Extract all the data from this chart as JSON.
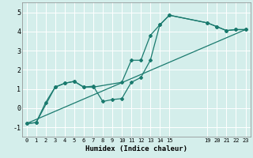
{
  "xlabel": "Humidex (Indice chaleur)",
  "ylabel": "",
  "bg_color": "#d4eeeb",
  "grid_color": "#ffffff",
  "line_color": "#1a7a6e",
  "xlim": [
    -0.5,
    23.5
  ],
  "ylim": [
    -1.5,
    5.5
  ],
  "xticks": [
    0,
    1,
    2,
    3,
    4,
    5,
    6,
    7,
    8,
    9,
    10,
    11,
    12,
    13,
    14,
    15,
    19,
    20,
    21,
    22,
    23
  ],
  "yticks": [
    -1,
    0,
    1,
    2,
    3,
    4,
    5
  ],
  "line1": {
    "x": [
      0,
      1,
      2,
      3,
      4,
      5,
      6,
      7,
      8,
      9,
      10,
      11,
      12,
      13,
      14,
      15,
      19,
      20,
      21,
      22,
      23
    ],
    "y": [
      -0.8,
      -0.75,
      0.3,
      1.1,
      1.3,
      1.4,
      1.1,
      1.15,
      0.35,
      0.45,
      0.5,
      1.35,
      1.6,
      2.5,
      4.35,
      4.85,
      4.45,
      4.25,
      4.05,
      4.1,
      4.1
    ]
  },
  "line2": {
    "x": [
      0,
      1,
      3,
      4,
      5,
      6,
      7,
      10,
      11,
      12,
      13,
      14,
      15,
      19,
      20,
      21,
      22,
      23
    ],
    "y": [
      -0.8,
      -0.75,
      1.1,
      1.3,
      1.4,
      1.1,
      1.1,
      1.35,
      2.5,
      2.5,
      3.8,
      4.35,
      4.85,
      4.45,
      4.25,
      4.05,
      4.1,
      4.1
    ]
  },
  "line3": {
    "x": [
      0,
      23
    ],
    "y": [
      -0.8,
      4.1
    ]
  }
}
